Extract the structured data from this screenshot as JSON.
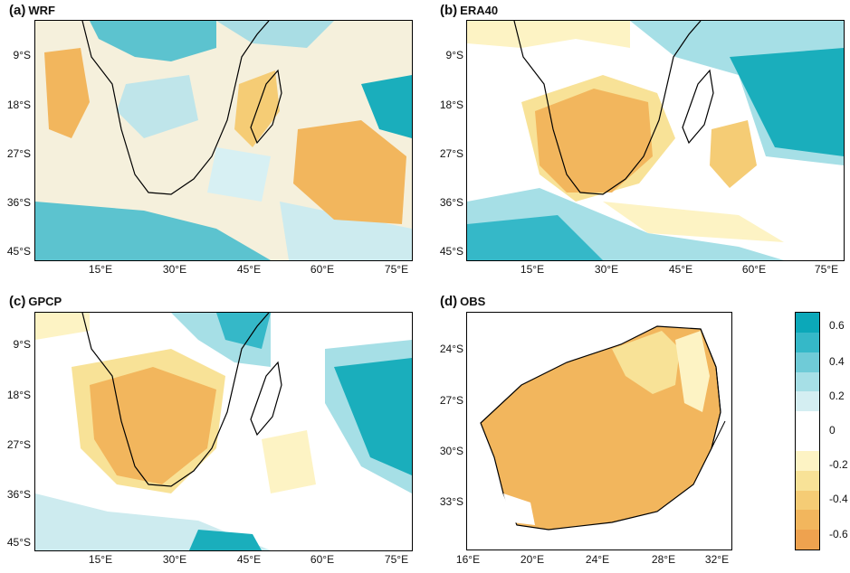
{
  "panels": [
    {
      "letter": "(a)",
      "name": "WRF",
      "yticks": [
        "9°S",
        "18°S",
        "27°S",
        "36°S",
        "45°S"
      ],
      "xticks": [
        "15°E",
        "30°E",
        "45°E",
        "60°E",
        "75°E"
      ]
    },
    {
      "letter": "(b)",
      "name": "ERA40",
      "yticks": [
        "9°S",
        "18°S",
        "27°S",
        "36°S",
        "45°S"
      ],
      "xticks": [
        "15°E",
        "30°E",
        "45°E",
        "60°E",
        "75°E"
      ]
    },
    {
      "letter": "(c)",
      "name": "GPCP",
      "yticks": [
        "9°S",
        "18°S",
        "27°S",
        "36°S",
        "45°S"
      ],
      "xticks": [
        "15°E",
        "30°E",
        "45°E",
        "60°E",
        "75°E"
      ]
    },
    {
      "letter": "(d)",
      "name": "OBS",
      "yticks": [
        "24°S",
        "27°S",
        "30°S",
        "33°S"
      ],
      "xticks": [
        "16°E",
        "20°E",
        "24°E",
        "28°E",
        "32°E"
      ]
    }
  ],
  "colorbar": {
    "labels": [
      "0.6",
      "0.4",
      "0.2",
      "0",
      "-0.2",
      "-0.4",
      "-0.6"
    ],
    "colors": [
      "#0ba8b9",
      "#35b8c8",
      "#6fcbd7",
      "#a6dfe6",
      "#d4eef2",
      "#ffffff",
      "#ffffff",
      "#fdf3c4",
      "#f8e297",
      "#f5cc75",
      "#f2b65d",
      "#eea24f"
    ]
  }
}
